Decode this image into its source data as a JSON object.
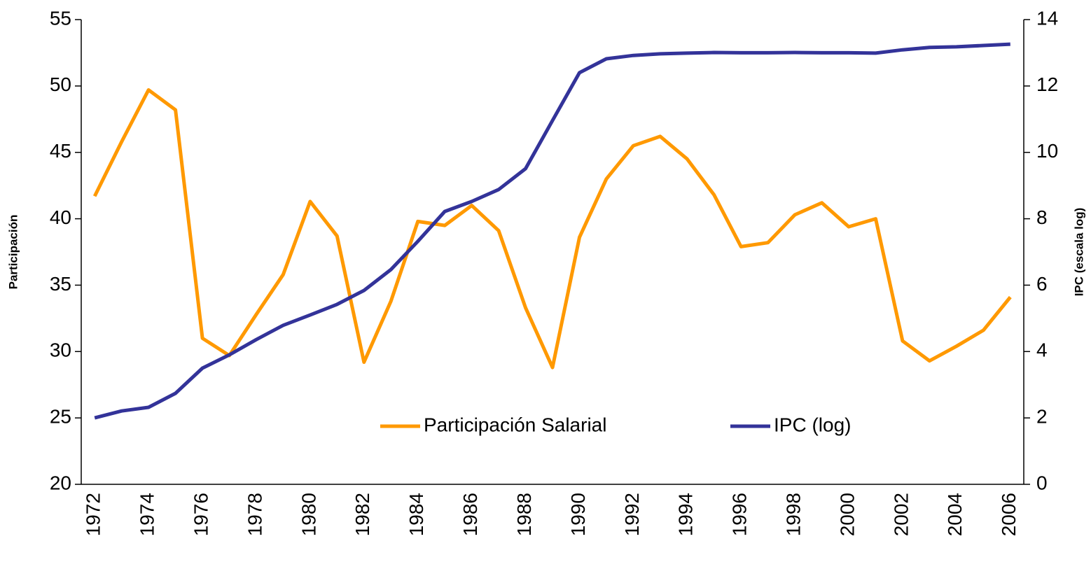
{
  "chart_data": {
    "type": "line",
    "categories": [
      1972,
      null,
      1974,
      null,
      1976,
      null,
      1978,
      null,
      1980,
      null,
      1982,
      null,
      1984,
      null,
      1986,
      null,
      1988,
      null,
      1990,
      null,
      1992,
      null,
      1994,
      null,
      1996,
      null,
      1998,
      null,
      2000,
      null,
      2002,
      null,
      2004,
      null,
      2006
    ],
    "y_label": "Participación",
    "y2_label": "IPC (escala log)",
    "ylim": [
      20,
      55
    ],
    "yticks": [
      20,
      25,
      30,
      35,
      40,
      45,
      50,
      55
    ],
    "y2lim": [
      0,
      14
    ],
    "y2ticks": [
      0,
      2,
      4,
      6,
      8,
      10,
      12,
      14
    ],
    "grid": false,
    "legend": "bottom-center",
    "series": [
      {
        "name": "Participación Salarial",
        "color": "#ff9900",
        "values": [
          41.7,
          45.8,
          49.7,
          48.2,
          31.0,
          29.7,
          32.8,
          35.8,
          41.3,
          38.7,
          29.2,
          33.8,
          39.8,
          39.5,
          41.0,
          39.1,
          33.3,
          28.8,
          38.6,
          43.0,
          45.5,
          46.2,
          44.5,
          41.8,
          37.9,
          38.2,
          40.3,
          41.2,
          39.4,
          40.0,
          30.8,
          29.3,
          30.4,
          31.6,
          34.1
        ]
      },
      {
        "name": "IPC (log)",
        "color": "#333399",
        "axis": "y2",
        "values": [
          2.0,
          2.21,
          2.32,
          2.74,
          3.5,
          3.9,
          4.36,
          4.79,
          5.1,
          5.42,
          5.84,
          6.47,
          7.32,
          8.22,
          8.52,
          8.88,
          9.51,
          10.96,
          12.4,
          12.82,
          12.92,
          12.97,
          12.99,
          13.01,
          13.0,
          13.0,
          13.01,
          13.0,
          13.0,
          12.99,
          13.09,
          13.16,
          13.18,
          13.22,
          13.26
        ]
      }
    ]
  }
}
